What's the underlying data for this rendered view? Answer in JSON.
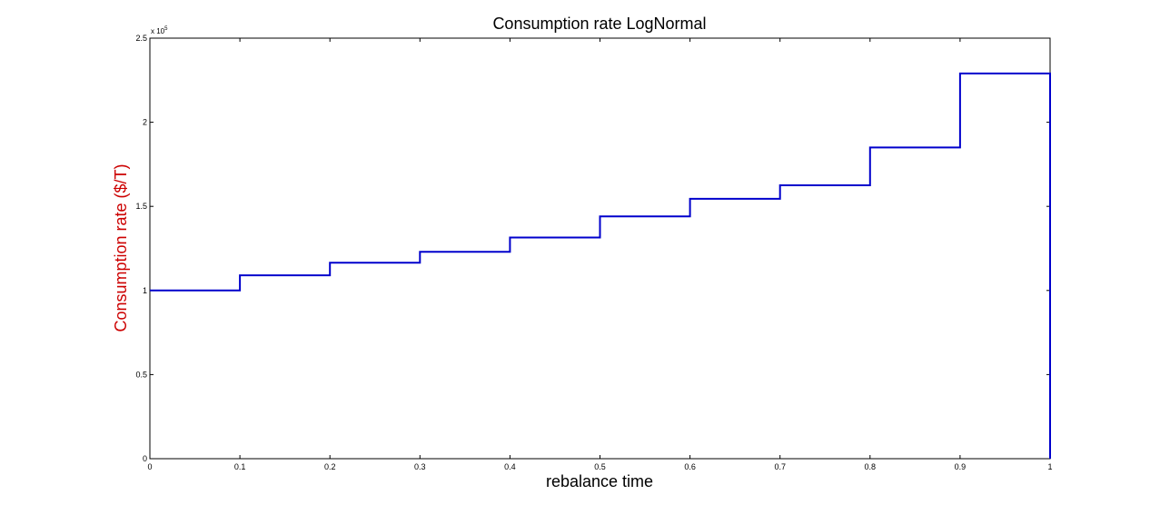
{
  "chart_data": {
    "type": "line",
    "title": "Consumption rate LogNormal",
    "xlabel": "rebalance time",
    "ylabel": "Consumption rate ($/T)",
    "ylabel_color": "#cc0000",
    "line_color": "#0000cc",
    "y_multiplier_base": "x 10",
    "y_multiplier_exp": "5",
    "xlim": [
      0,
      1
    ],
    "ylim": [
      0,
      2.5
    ],
    "x_ticks": [
      0,
      0.1,
      0.2,
      0.3,
      0.4,
      0.5,
      0.6,
      0.7,
      0.8,
      0.9,
      1
    ],
    "x_tick_labels": [
      "0",
      "0.1",
      "0.2",
      "0.3",
      "0.4",
      "0.5",
      "0.6",
      "0.7",
      "0.8",
      "0.9",
      "1"
    ],
    "y_ticks": [
      0,
      0.5,
      1,
      1.5,
      2,
      2.5
    ],
    "y_tick_labels": [
      "0",
      "0.5",
      "1",
      "1.5",
      "2",
      "2.5"
    ],
    "grid": false,
    "series": [
      {
        "style": "stairs",
        "x": [
          0,
          0.1,
          0.2,
          0.3,
          0.4,
          0.5,
          0.6,
          0.7,
          0.8,
          0.9,
          1
        ],
        "y": [
          1.0,
          1.09,
          1.165,
          1.23,
          1.315,
          1.44,
          1.545,
          1.625,
          1.85,
          2.29,
          0
        ]
      }
    ]
  }
}
